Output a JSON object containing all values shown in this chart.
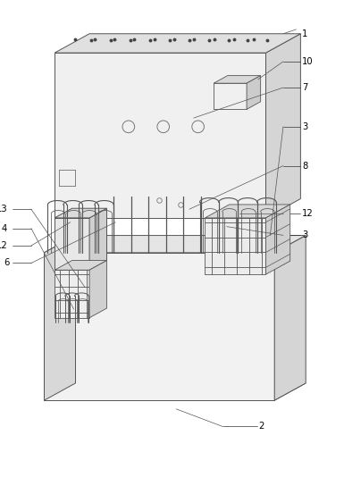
{
  "fig_width": 3.85,
  "fig_height": 5.53,
  "dpi": 100,
  "bg_color": "#ffffff",
  "lc": "#555555",
  "lw": 0.7,
  "face_top": "#e8e8e8",
  "face_front": "#f2f2f2",
  "face_side": "#d8d8d8",
  "face_dark": "#c8c8c8"
}
